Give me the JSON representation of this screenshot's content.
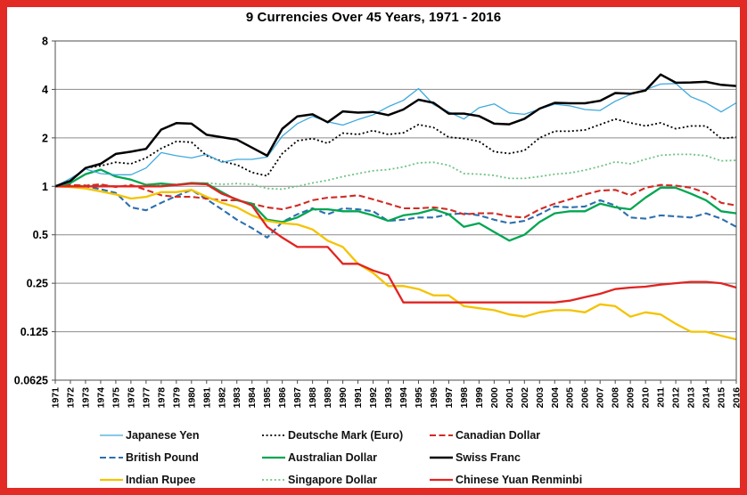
{
  "title": "9 Currencies Over 45 Years, 1971 - 2016",
  "frame": {
    "border_color": "#e12b24",
    "background": "#ffffff"
  },
  "chart_data": {
    "type": "line",
    "title": "9 Currencies Over 45 Years, 1971 - 2016",
    "xlabel": "",
    "ylabel": "",
    "y_scale": "log2",
    "ylim": [
      0.0625,
      8
    ],
    "ytick_values": [
      8,
      4,
      2,
      1,
      0.5,
      0.25,
      0.125,
      0.0625
    ],
    "ytick_labels": [
      "8",
      "4",
      "2",
      "1",
      "0.5",
      "0.25",
      "0.125",
      "0.0625"
    ],
    "grid": "horizontal-only",
    "legend_position": "bottom, 3 columns x 3 rows",
    "x": [
      1971,
      1972,
      1973,
      1974,
      1975,
      1976,
      1977,
      1978,
      1979,
      1980,
      1981,
      1982,
      1983,
      1984,
      1985,
      1986,
      1987,
      1988,
      1989,
      1990,
      1991,
      1992,
      1993,
      1994,
      1995,
      1996,
      1997,
      1998,
      1999,
      2000,
      2001,
      2002,
      2003,
      2004,
      2005,
      2006,
      2007,
      2008,
      2009,
      2010,
      2011,
      2012,
      2013,
      2014,
      2015,
      2016
    ],
    "series": [
      {
        "name": "Japanese Yen",
        "slug": "japanese-yen",
        "color": "#3fa9dc",
        "style": "solid",
        "width": 1.3,
        "z": 8,
        "values": [
          1.0,
          1.12,
          1.28,
          1.2,
          1.18,
          1.18,
          1.3,
          1.62,
          1.55,
          1.5,
          1.58,
          1.41,
          1.47,
          1.47,
          1.52,
          2.05,
          2.45,
          2.72,
          2.52,
          2.4,
          2.6,
          2.78,
          3.12,
          3.42,
          4.05,
          3.22,
          2.9,
          2.62,
          3.08,
          3.25,
          2.86,
          2.8,
          3.02,
          3.24,
          3.16,
          3.0,
          2.96,
          3.38,
          3.72,
          3.98,
          4.32,
          4.35,
          3.6,
          3.3,
          2.9,
          3.3
        ]
      },
      {
        "name": "Deutsche Mark (Euro)",
        "slug": "deutsche-mark-euro",
        "color": "#000000",
        "style": "dotted",
        "width": 1.8,
        "z": 2,
        "values": [
          1.0,
          1.09,
          1.3,
          1.34,
          1.41,
          1.38,
          1.5,
          1.72,
          1.9,
          1.88,
          1.55,
          1.43,
          1.36,
          1.22,
          1.16,
          1.6,
          1.92,
          1.98,
          1.85,
          2.14,
          2.1,
          2.22,
          2.1,
          2.15,
          2.42,
          2.32,
          2.02,
          1.98,
          1.9,
          1.64,
          1.6,
          1.67,
          2.0,
          2.2,
          2.2,
          2.24,
          2.42,
          2.62,
          2.48,
          2.37,
          2.48,
          2.28,
          2.37,
          2.37,
          1.98,
          2.02
        ]
      },
      {
        "name": "Canadian Dollar",
        "slug": "canadian-dollar",
        "color": "#d12b24",
        "style": "dashed",
        "width": 2.1,
        "z": 4,
        "values": [
          1.0,
          1.02,
          1.01,
          1.03,
          0.99,
          1.02,
          0.95,
          0.88,
          0.86,
          0.86,
          0.84,
          0.82,
          0.82,
          0.78,
          0.74,
          0.72,
          0.76,
          0.82,
          0.85,
          0.86,
          0.88,
          0.83,
          0.78,
          0.73,
          0.73,
          0.74,
          0.72,
          0.67,
          0.68,
          0.68,
          0.65,
          0.64,
          0.72,
          0.78,
          0.83,
          0.89,
          0.94,
          0.95,
          0.88,
          0.98,
          1.02,
          1.01,
          0.98,
          0.91,
          0.79,
          0.76
        ]
      },
      {
        "name": "British Pound",
        "slug": "british-pound",
        "color": "#2c6fad",
        "style": "dashed",
        "width": 2.1,
        "z": 3,
        "values": [
          1.0,
          1.02,
          1.0,
          0.96,
          0.91,
          0.74,
          0.71,
          0.79,
          0.87,
          0.95,
          0.83,
          0.72,
          0.62,
          0.55,
          0.48,
          0.6,
          0.67,
          0.73,
          0.67,
          0.73,
          0.72,
          0.7,
          0.61,
          0.62,
          0.64,
          0.64,
          0.67,
          0.68,
          0.66,
          0.62,
          0.59,
          0.61,
          0.67,
          0.75,
          0.74,
          0.75,
          0.82,
          0.76,
          0.64,
          0.63,
          0.66,
          0.65,
          0.64,
          0.68,
          0.63,
          0.56
        ]
      },
      {
        "name": "Australian Dollar",
        "slug": "australian-dollar",
        "color": "#00a651",
        "style": "solid",
        "width": 2.3,
        "z": 5,
        "values": [
          1.0,
          1.05,
          1.19,
          1.27,
          1.15,
          1.1,
          1.02,
          1.04,
          1.02,
          1.05,
          1.04,
          0.92,
          0.82,
          0.78,
          0.62,
          0.6,
          0.64,
          0.72,
          0.72,
          0.7,
          0.7,
          0.66,
          0.61,
          0.66,
          0.68,
          0.72,
          0.67,
          0.56,
          0.59,
          0.52,
          0.46,
          0.5,
          0.6,
          0.68,
          0.7,
          0.7,
          0.78,
          0.74,
          0.72,
          0.85,
          0.98,
          0.98,
          0.9,
          0.82,
          0.7,
          0.68
        ]
      },
      {
        "name": "Swiss Franc",
        "slug": "swiss-franc",
        "color": "#000000",
        "style": "solid",
        "width": 2.5,
        "z": 9,
        "values": [
          1.0,
          1.08,
          1.3,
          1.38,
          1.59,
          1.64,
          1.71,
          2.25,
          2.47,
          2.45,
          2.09,
          2.02,
          1.95,
          1.74,
          1.55,
          2.28,
          2.72,
          2.8,
          2.5,
          2.92,
          2.87,
          2.9,
          2.77,
          3.0,
          3.45,
          3.3,
          2.83,
          2.83,
          2.73,
          2.45,
          2.43,
          2.63,
          3.04,
          3.3,
          3.28,
          3.28,
          3.4,
          3.8,
          3.76,
          3.94,
          4.95,
          4.4,
          4.42,
          4.46,
          4.27,
          4.2
        ]
      },
      {
        "name": "Indian Rupee",
        "slug": "indian-rupee",
        "color": "#f4c300",
        "style": "solid",
        "width": 2.3,
        "z": 6,
        "values": [
          1.0,
          0.99,
          0.97,
          0.93,
          0.89,
          0.84,
          0.86,
          0.92,
          0.92,
          0.95,
          0.86,
          0.79,
          0.74,
          0.66,
          0.61,
          0.59,
          0.58,
          0.54,
          0.46,
          0.42,
          0.33,
          0.29,
          0.24,
          0.24,
          0.23,
          0.21,
          0.21,
          0.18,
          0.175,
          0.17,
          0.16,
          0.155,
          0.165,
          0.17,
          0.17,
          0.165,
          0.185,
          0.18,
          0.155,
          0.165,
          0.16,
          0.14,
          0.125,
          0.125,
          0.118,
          0.112
        ]
      },
      {
        "name": "Singapore Dollar",
        "slug": "singapore-dollar",
        "color": "#70c284",
        "style": "dotted",
        "width": 1.8,
        "z": 1,
        "values": [
          1.0,
          1.0,
          1.02,
          1.02,
          1.0,
          1.0,
          1.0,
          1.02,
          1.03,
          1.04,
          1.05,
          1.03,
          1.04,
          1.03,
          0.97,
          0.96,
          1.0,
          1.05,
          1.09,
          1.15,
          1.2,
          1.25,
          1.27,
          1.32,
          1.4,
          1.41,
          1.35,
          1.2,
          1.19,
          1.17,
          1.12,
          1.12,
          1.15,
          1.19,
          1.21,
          1.26,
          1.33,
          1.42,
          1.38,
          1.47,
          1.56,
          1.58,
          1.58,
          1.55,
          1.44,
          1.45
        ]
      },
      {
        "name": "Chinese Yuan Renminbi",
        "slug": "chinese-yuan-renminbi",
        "color": "#e02421",
        "style": "solid",
        "width": 2.3,
        "z": 7,
        "values": [
          1.0,
          1.0,
          1.0,
          1.0,
          1.0,
          1.0,
          1.0,
          1.0,
          1.02,
          1.04,
          1.03,
          0.9,
          0.83,
          0.76,
          0.56,
          0.48,
          0.42,
          0.42,
          0.42,
          0.33,
          0.33,
          0.3,
          0.28,
          0.19,
          0.19,
          0.19,
          0.19,
          0.19,
          0.19,
          0.19,
          0.19,
          0.19,
          0.19,
          0.19,
          0.195,
          0.205,
          0.215,
          0.23,
          0.235,
          0.238,
          0.245,
          0.25,
          0.255,
          0.255,
          0.25,
          0.235
        ]
      }
    ]
  }
}
